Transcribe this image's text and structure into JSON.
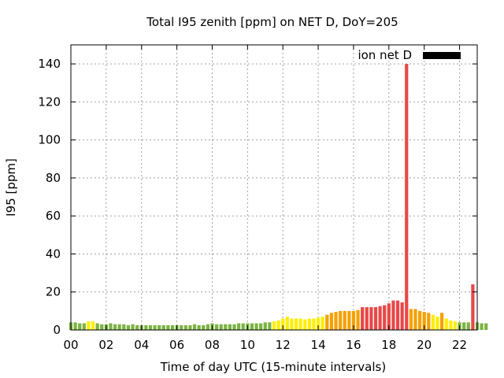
{
  "chart_data": {
    "type": "bar",
    "title": "Total I95 zenith [ppm] on NET D, DoY=205",
    "xlabel": "Time of day UTC (15-minute intervals)",
    "ylabel": "I95 [ppm]",
    "xlim": [
      0,
      23
    ],
    "ylim": [
      0,
      150
    ],
    "interval_hours": 0.25,
    "xticks": [
      {
        "value": 0,
        "label": "00"
      },
      {
        "value": 2,
        "label": "02"
      },
      {
        "value": 4,
        "label": "04"
      },
      {
        "value": 6,
        "label": "06"
      },
      {
        "value": 8,
        "label": "08"
      },
      {
        "value": 10,
        "label": "10"
      },
      {
        "value": 12,
        "label": "12"
      },
      {
        "value": 14,
        "label": "14"
      },
      {
        "value": 16,
        "label": "16"
      },
      {
        "value": 18,
        "label": "18"
      },
      {
        "value": 20,
        "label": "20"
      },
      {
        "value": 22,
        "label": "22"
      }
    ],
    "yticks": [
      {
        "value": 0,
        "label": "0"
      },
      {
        "value": 20,
        "label": "20"
      },
      {
        "value": 40,
        "label": "40"
      },
      {
        "value": 60,
        "label": "60"
      },
      {
        "value": 80,
        "label": "80"
      },
      {
        "value": 100,
        "label": "100"
      },
      {
        "value": 120,
        "label": "120"
      },
      {
        "value": 140,
        "label": "140"
      }
    ],
    "grid": true,
    "legend": {
      "position": "top-right",
      "label": "ion net D",
      "color": "#000000"
    },
    "colors": {
      "green": "#7cb342",
      "yellow": "#ffee00",
      "orange": "#f5a000",
      "red": "#e84848"
    },
    "series": [
      {
        "name": "ion net D",
        "values": [
          4,
          4,
          3.5,
          3.5,
          4.5,
          4.5,
          3.5,
          3,
          3,
          3.5,
          3,
          3,
          3,
          2.5,
          3,
          2.5,
          2.5,
          2.5,
          2.5,
          2.5,
          2.5,
          2.5,
          2.5,
          2.5,
          2.5,
          2.5,
          2.5,
          2.5,
          3,
          2.5,
          2.5,
          3,
          3.5,
          3,
          3,
          3,
          3,
          3,
          3.5,
          3.5,
          3.5,
          3.5,
          3.5,
          3.5,
          4,
          4,
          4.5,
          5,
          6,
          7,
          6,
          6,
          6,
          5.5,
          6,
          6,
          6.5,
          7,
          8,
          9,
          9.5,
          10,
          10,
          10,
          10,
          10.5,
          12,
          12,
          12,
          12,
          12.5,
          13,
          14,
          15.5,
          15.5,
          14.5,
          140,
          11,
          11,
          10,
          9.5,
          9,
          8,
          7,
          9,
          6,
          5,
          4.5,
          4,
          4,
          4,
          24,
          4,
          3.5,
          3.5
        ],
        "levels": [
          "green",
          "green",
          "green",
          "green",
          "yellow",
          "yellow",
          "green",
          "green",
          "green",
          "green",
          "green",
          "green",
          "green",
          "green",
          "green",
          "green",
          "green",
          "green",
          "green",
          "green",
          "green",
          "green",
          "green",
          "green",
          "green",
          "green",
          "green",
          "green",
          "green",
          "green",
          "green",
          "green",
          "green",
          "green",
          "green",
          "green",
          "green",
          "green",
          "green",
          "green",
          "green",
          "green",
          "green",
          "green",
          "green",
          "green",
          "yellow",
          "yellow",
          "yellow",
          "yellow",
          "yellow",
          "yellow",
          "yellow",
          "yellow",
          "yellow",
          "yellow",
          "yellow",
          "yellow",
          "orange",
          "orange",
          "orange",
          "orange",
          "orange",
          "orange",
          "orange",
          "orange",
          "red",
          "red",
          "red",
          "red",
          "red",
          "red",
          "red",
          "red",
          "red",
          "red",
          "red",
          "orange",
          "orange",
          "orange",
          "orange",
          "orange",
          "yellow",
          "yellow",
          "orange",
          "yellow",
          "yellow",
          "yellow",
          "green",
          "green",
          "green",
          "red",
          "green",
          "green",
          "green"
        ]
      }
    ]
  }
}
